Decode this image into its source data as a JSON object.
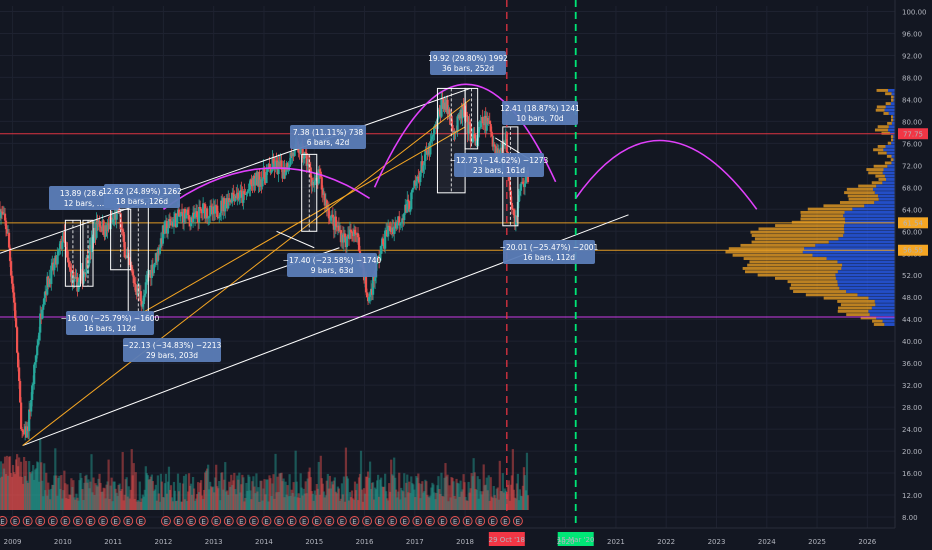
{
  "chart_data": {
    "type": "candlestick",
    "title": "",
    "xlabel": "",
    "ylabel": "",
    "ylim": [
      6,
      101
    ],
    "xlim": [
      2008.75,
      2026.55
    ],
    "grid": true,
    "y_ticks": [
      "100.00",
      "96.00",
      "92.00",
      "88.00",
      "84.00",
      "80.00",
      "76.00",
      "72.00",
      "68.00",
      "64.00",
      "60.00",
      "56.00",
      "52.00",
      "48.00",
      "44.00",
      "40.00",
      "36.00",
      "32.00",
      "28.00",
      "24.00",
      "20.00",
      "16.00",
      "12.00",
      "8.00"
    ],
    "x_ticks": [
      {
        "label": "2009",
        "x": 2009.0
      },
      {
        "label": "2010",
        "x": 2010.0
      },
      {
        "label": "2011",
        "x": 2011.0
      },
      {
        "label": "2012",
        "x": 2012.0
      },
      {
        "label": "2013",
        "x": 2013.0
      },
      {
        "label": "2014",
        "x": 2014.0
      },
      {
        "label": "2015",
        "x": 2015.0
      },
      {
        "label": "2016",
        "x": 2016.0
      },
      {
        "label": "2017",
        "x": 2017.0
      },
      {
        "label": "2018",
        "x": 2018.0
      },
      {
        "label": "2020",
        "x": 2020.0
      },
      {
        "label": "2021",
        "x": 2021.0
      },
      {
        "label": "2022",
        "x": 2022.0
      },
      {
        "label": "2023",
        "x": 2023.0
      },
      {
        "label": "2024",
        "x": 2024.0
      },
      {
        "label": "2025",
        "x": 2025.0
      },
      {
        "label": "2026",
        "x": 2026.0
      }
    ],
    "price_path": [
      [
        2008.75,
        64
      ],
      [
        2008.9,
        60
      ],
      [
        2009.05,
        45
      ],
      [
        2009.15,
        28
      ],
      [
        2009.2,
        22
      ],
      [
        2009.3,
        24
      ],
      [
        2009.45,
        36
      ],
      [
        2009.6,
        48
      ],
      [
        2009.75,
        52
      ],
      [
        2009.9,
        55
      ],
      [
        2010.0,
        59
      ],
      [
        2010.1,
        54
      ],
      [
        2010.25,
        50
      ],
      [
        2010.4,
        52
      ],
      [
        2010.55,
        57
      ],
      [
        2010.7,
        62
      ],
      [
        2010.85,
        60
      ],
      [
        2011.0,
        62
      ],
      [
        2011.1,
        64
      ],
      [
        2011.2,
        58
      ],
      [
        2011.3,
        54
      ],
      [
        2011.45,
        50
      ],
      [
        2011.6,
        47
      ],
      [
        2011.7,
        52
      ],
      [
        2011.85,
        55
      ],
      [
        2012.0,
        60
      ],
      [
        2012.2,
        62
      ],
      [
        2012.4,
        63
      ],
      [
        2012.6,
        62
      ],
      [
        2012.8,
        64
      ],
      [
        2013.0,
        63
      ],
      [
        2013.2,
        65
      ],
      [
        2013.4,
        67
      ],
      [
        2013.6,
        66
      ],
      [
        2013.8,
        69
      ],
      [
        2014.0,
        70
      ],
      [
        2014.2,
        72
      ],
      [
        2014.4,
        71
      ],
      [
        2014.55,
        74
      ],
      [
        2014.7,
        75
      ],
      [
        2014.85,
        73
      ],
      [
        2015.0,
        68
      ],
      [
        2015.1,
        70
      ],
      [
        2015.2,
        66
      ],
      [
        2015.35,
        62
      ],
      [
        2015.5,
        60
      ],
      [
        2015.65,
        58
      ],
      [
        2015.8,
        61
      ],
      [
        2016.0,
        52
      ],
      [
        2016.05,
        47
      ],
      [
        2016.15,
        50
      ],
      [
        2016.3,
        56
      ],
      [
        2016.45,
        60
      ],
      [
        2016.6,
        61
      ],
      [
        2016.75,
        63
      ],
      [
        2016.9,
        65
      ],
      [
        2017.0,
        68
      ],
      [
        2017.15,
        72
      ],
      [
        2017.3,
        75
      ],
      [
        2017.45,
        80
      ],
      [
        2017.55,
        84
      ],
      [
        2017.7,
        81
      ],
      [
        2017.8,
        78
      ],
      [
        2017.95,
        82
      ],
      [
        2018.05,
        79
      ],
      [
        2018.2,
        76
      ],
      [
        2018.35,
        80
      ],
      [
        2018.5,
        79
      ],
      [
        2018.6,
        75
      ],
      [
        2018.7,
        74
      ],
      [
        2018.8,
        78
      ],
      [
        2018.9,
        67
      ],
      [
        2019.0,
        62
      ],
      [
        2019.1,
        68
      ],
      [
        2019.25,
        70
      ]
    ],
    "volume_profile_levels": [
      44,
      46,
      48,
      50,
      52,
      54,
      56,
      58,
      60,
      62,
      64,
      66,
      68,
      70,
      72,
      74,
      76,
      78,
      80,
      82,
      84
    ],
    "volume_profile_note": "",
    "horizontal_levels": [
      {
        "price": 77.75,
        "label": "77.75",
        "color": "#f23645"
      },
      {
        "price": 61.54,
        "label": "61.54",
        "color": "#f5a623"
      },
      {
        "price": 56.55,
        "label": "56.55",
        "color": "#f5a623"
      },
      {
        "price": 44.4,
        "label": "",
        "color": "#e040fb"
      }
    ],
    "date_markers": [
      {
        "x": 2018.83,
        "label": "29 Oct '18",
        "color": "#f23645"
      },
      {
        "x": 2020.2,
        "label": "15 Mar '20",
        "color": "#00e676"
      }
    ],
    "annotations": [
      {
        "line1": "13.89 (28.67",
        "line2": "12 bars, …"
      },
      {
        "line1": "12.62 (24.89%) 1262",
        "line2": "18 bars, 126d"
      },
      {
        "line1": "−16.00 (−25.79%) −1600",
        "line2": "16 bars, 112d"
      },
      {
        "line1": "−22.13 (−34.83%) −2213",
        "line2": "29 bars, 203d"
      },
      {
        "line1": "7.38 (11.11%) 738",
        "line2": "6 bars, 42d"
      },
      {
        "line1": "−17.40 (−23.58%) −1740",
        "line2": "9 bars, 63d"
      },
      {
        "line1": "19.92 (29.80%) 1992",
        "line2": "36 bars, 252d"
      },
      {
        "line1": "12.41 (18.87%) 1241",
        "line2": "10 bars, 70d"
      },
      {
        "line1": "−12.73 (−14.62%) −1273",
        "line2": "23 bars, 161d"
      },
      {
        "line1": "−20.01 (−25.47%) −2001",
        "line2": "16 bars, 112d"
      }
    ],
    "earnings_marker": "E",
    "colors": {
      "background": "#131722",
      "up": "#26a69a",
      "down": "#ef5350",
      "channel": "#ffffff",
      "trend": "#f5a623",
      "arc": "#e040fb",
      "annotation_bg": "#5b7db8",
      "vp_up": "#2962ff",
      "vp_down": "#f5a623"
    }
  }
}
